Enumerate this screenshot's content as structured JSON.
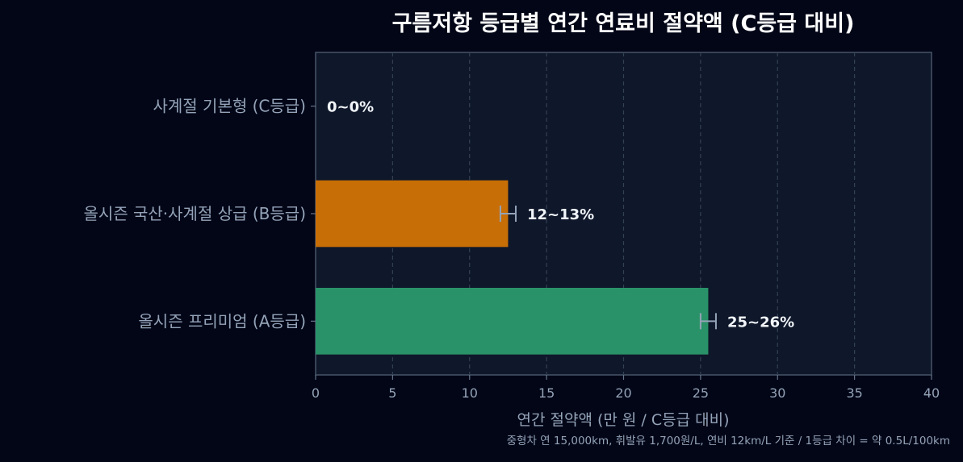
{
  "chart_data": {
    "type": "bar",
    "orientation": "horizontal",
    "title": "구름저항 등급별 연간 연료비 절약액 (C등급 대비)",
    "xlabel": "연간 절약액 (만 원 / C등급 대비)",
    "footnote": "중형차 연 15,000km, 휘발유 1,700원/L, 연비 12km/L 기준 / 1등급 차이 = 약 0.5L/100km",
    "xlim": [
      0,
      40
    ],
    "xticks": [
      0,
      5,
      10,
      15,
      20,
      25,
      30,
      35,
      40
    ],
    "grid": "x-dashed",
    "categories": [
      "사계절 기본형 (C등급)",
      "올시즌 국산·사계절 상급 (B등급)",
      "올시즌 프리미엄 (A등급)"
    ],
    "values": [
      0,
      12.5,
      25.5
    ],
    "error_low": [
      0,
      12,
      25
    ],
    "error_high": [
      0,
      13,
      26
    ],
    "data_labels": [
      "0~0%",
      "12~13%",
      "25~26%"
    ],
    "colors": [
      "#64748b",
      "#c76e06",
      "#2a9268"
    ]
  }
}
